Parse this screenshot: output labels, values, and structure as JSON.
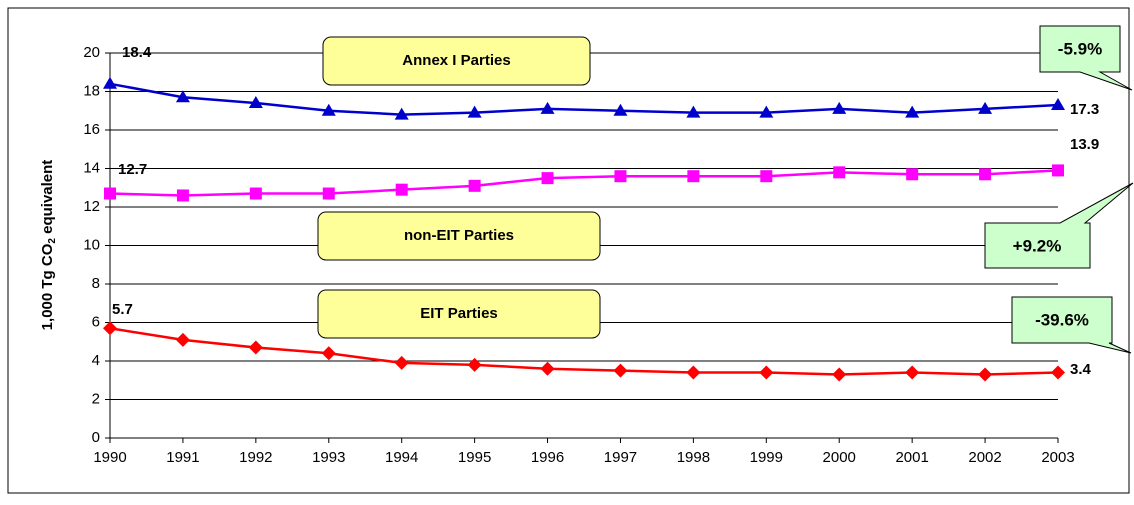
{
  "chart_data": {
    "type": "line",
    "y_label": [
      "1,000 Tg CO",
      "2",
      " equivalent"
    ],
    "x": [
      1990,
      1991,
      1992,
      1993,
      1994,
      1995,
      1996,
      1997,
      1998,
      1999,
      2000,
      2001,
      2002,
      2003
    ],
    "xlim": [
      1990,
      2003
    ],
    "ylim": [
      0,
      20
    ],
    "yticks": [
      0,
      2,
      4,
      6,
      8,
      10,
      12,
      14,
      16,
      18,
      20
    ],
    "grid": true,
    "series": [
      {
        "name": "Annex I Parties",
        "color": "#0000cc",
        "marker": "triangle",
        "values": [
          18.4,
          17.7,
          17.4,
          17.0,
          16.8,
          16.9,
          17.1,
          17.0,
          16.9,
          16.9,
          17.1,
          16.9,
          17.1,
          17.3
        ],
        "change": "-5.9%"
      },
      {
        "name": "non-EIT Parties",
        "color": "#ff00ff",
        "marker": "square",
        "values": [
          12.7,
          12.6,
          12.7,
          12.7,
          12.9,
          13.1,
          13.5,
          13.6,
          13.6,
          13.6,
          13.8,
          13.7,
          13.7,
          13.9
        ],
        "change": "+9.2%"
      },
      {
        "name": "EIT Parties",
        "color": "#ff0000",
        "marker": "diamond",
        "values": [
          5.7,
          5.1,
          4.7,
          4.4,
          3.9,
          3.8,
          3.6,
          3.5,
          3.4,
          3.4,
          3.3,
          3.4,
          3.3,
          3.4
        ],
        "change": "-39.6%"
      }
    ]
  }
}
